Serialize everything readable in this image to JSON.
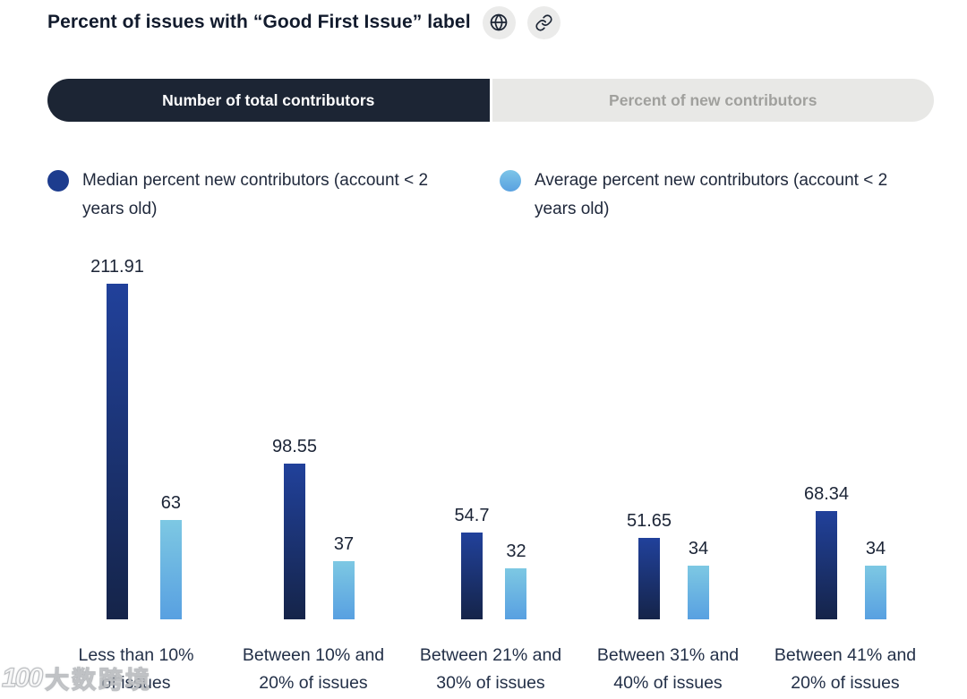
{
  "header": {
    "title": "Percent of issues with “Good First Issue” label",
    "icons": [
      {
        "name": "globe-icon"
      },
      {
        "name": "link-icon"
      }
    ]
  },
  "tabs": [
    {
      "label": "Number of total contributors",
      "active": true
    },
    {
      "label": "Percent of new contributors",
      "active": false
    }
  ],
  "legend": [
    {
      "label": "Median percent new contributors (account < 2 years old)",
      "color": "#1d3c8e"
    },
    {
      "label": "Average percent new contributors (account < 2 years old)",
      "color": "#6fbde6"
    }
  ],
  "colors": {
    "tab_active_bg": "#1c2534",
    "tab_active_text": "#ffffff",
    "tab_inactive_bg": "#e8e8e6",
    "tab_inactive_text": "#a0a09d",
    "bar_dark_top": "#21419b",
    "bar_dark_bottom": "#152449",
    "bar_light_top": "#7dc8e3",
    "bar_light_bottom": "#58a0e1",
    "title_text": "#121b2d",
    "value_label_text": "#1b2436",
    "category_label_text": "#233048"
  },
  "chart_data": {
    "type": "bar",
    "title": "Percent of issues with “Good First Issue” label",
    "categories": [
      "Less than 10% of issues",
      "Between 10% and 20% of issues",
      "Between 21% and 30% of issues",
      "Between 31% and 40% of issues",
      "Between 41% and 20% of issues"
    ],
    "categories_lines": [
      [
        "Less than 10%",
        "of issues"
      ],
      [
        "Between 10% and",
        "20% of issues"
      ],
      [
        "Between 21% and",
        "30% of issues"
      ],
      [
        "Between 31% and",
        "40% of issues"
      ],
      [
        "Between 41% and",
        "20% of issues"
      ]
    ],
    "series": [
      {
        "name": "Median percent new contributors (account < 2 years old)",
        "values": [
          211.91,
          98.55,
          54.7,
          51.65,
          68.34
        ]
      },
      {
        "name": "Average percent new contributors (account < 2 years old)",
        "values": [
          63,
          37,
          32,
          34,
          34
        ]
      }
    ],
    "value_labels": [
      [
        "211.91",
        "98.55",
        "54.7",
        "51.65",
        "68.34"
      ],
      [
        "63",
        "37",
        "32",
        "34",
        "34"
      ]
    ],
    "xlabel": "",
    "ylabel": "",
    "ylim": [
      0,
      231
    ],
    "grid": false,
    "legend_position": "top"
  },
  "watermark": {
    "logo": "100",
    "text": "大数跨境"
  }
}
